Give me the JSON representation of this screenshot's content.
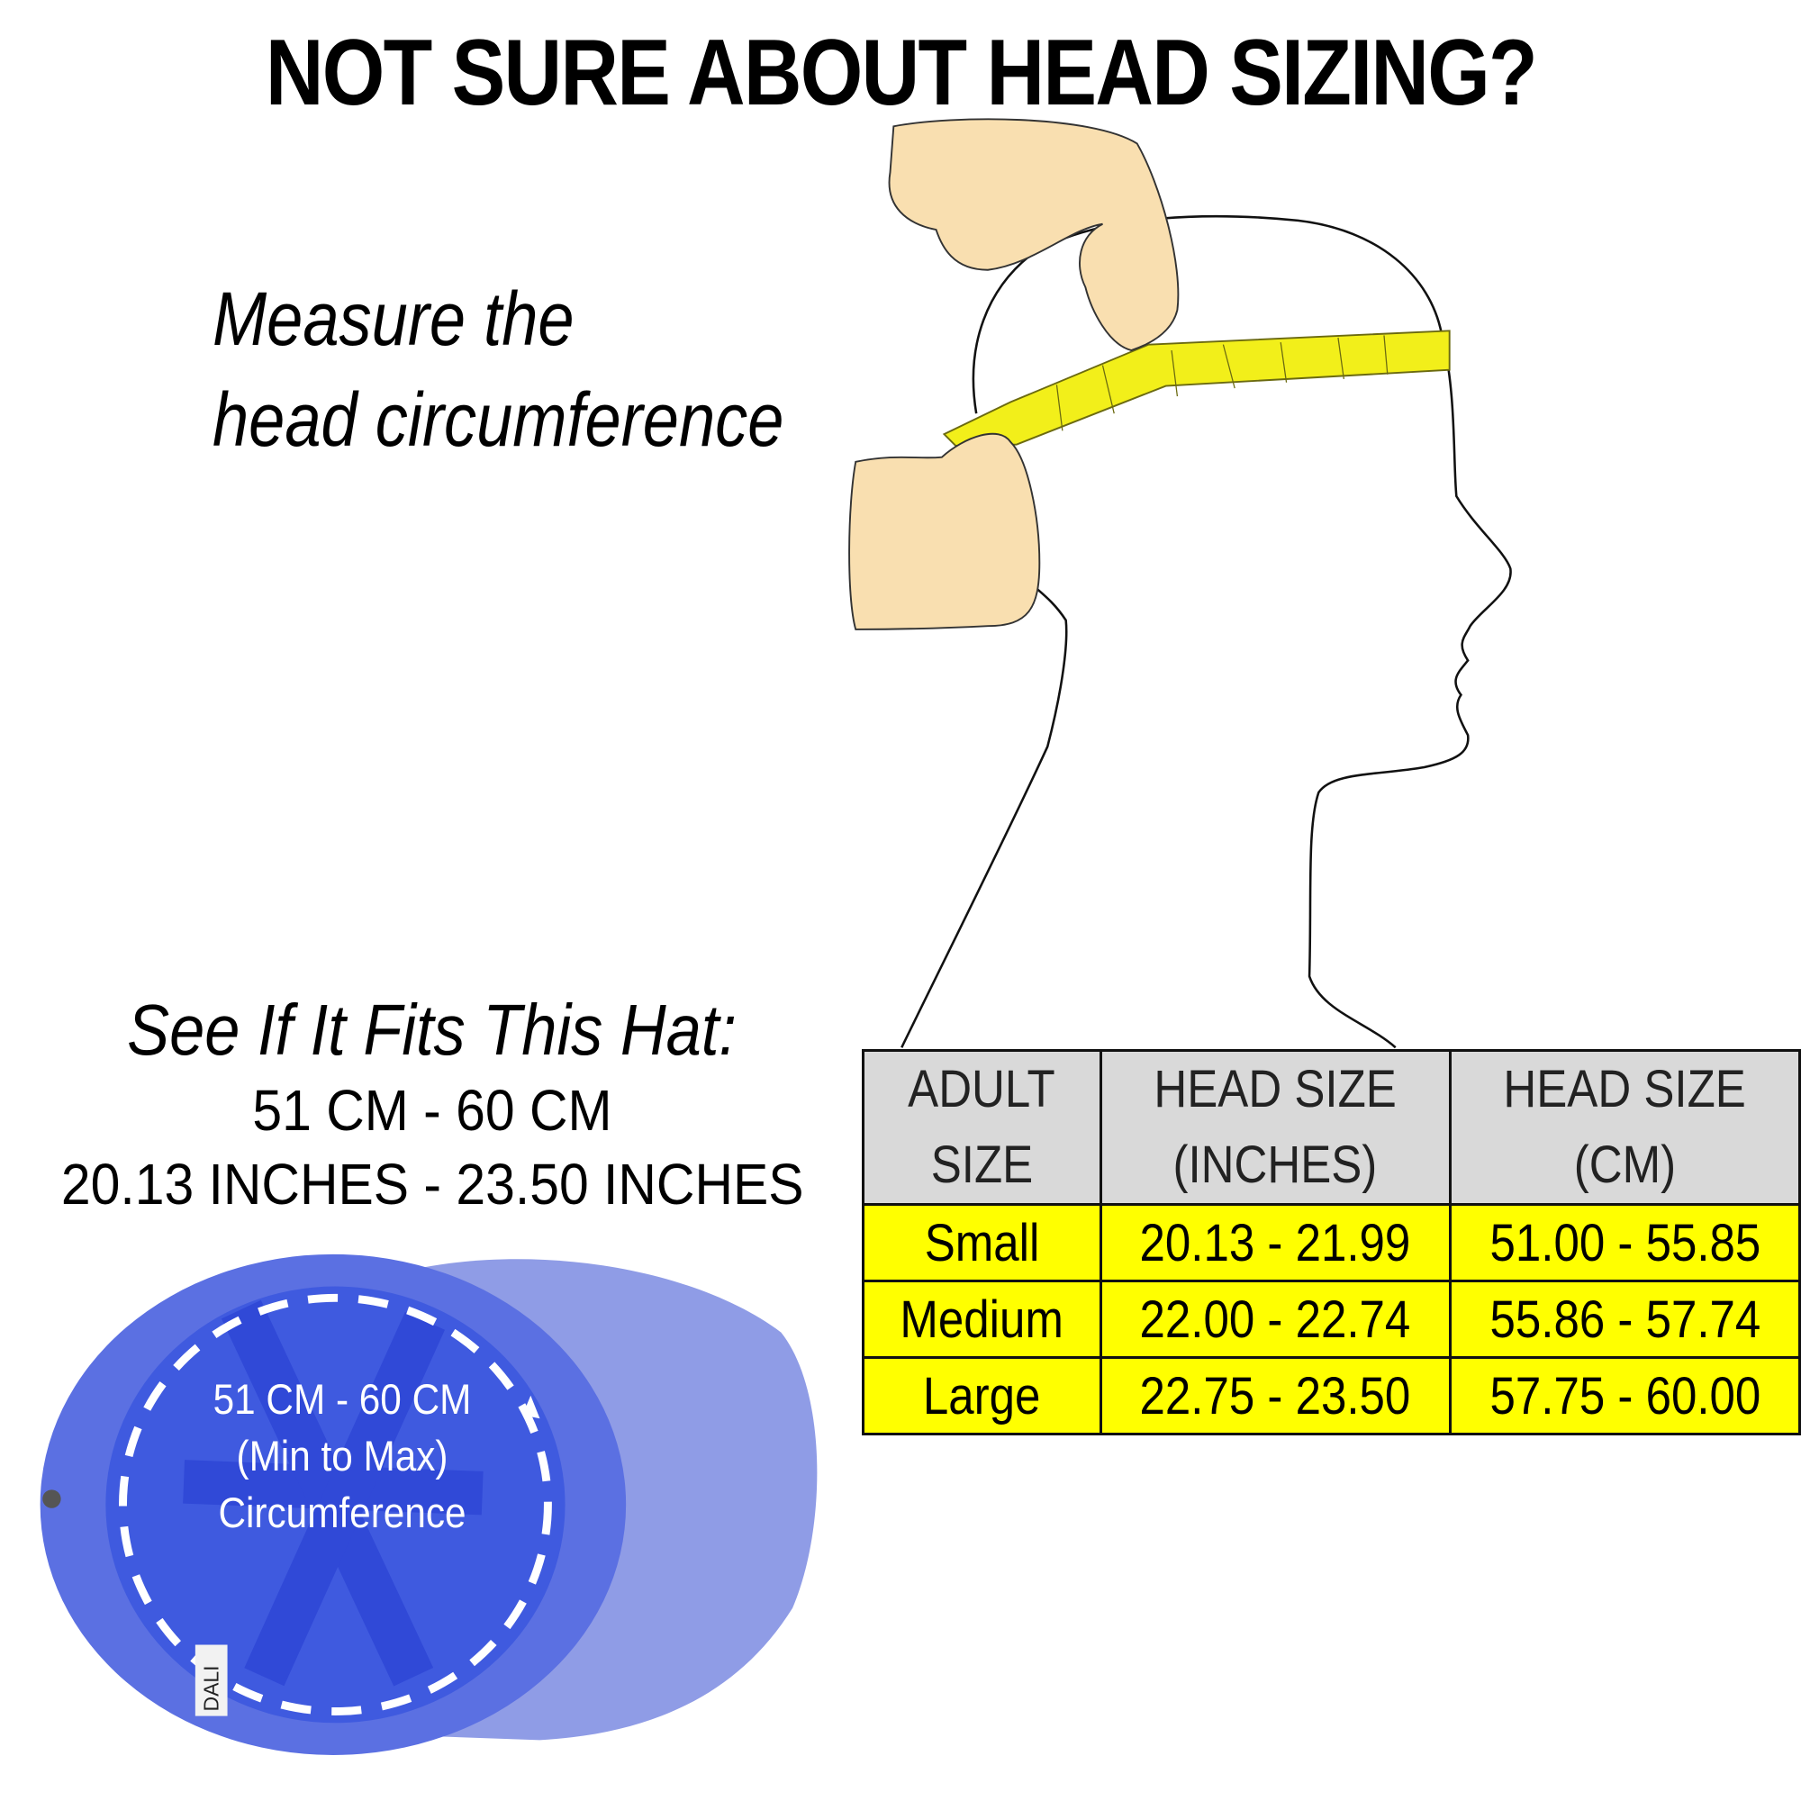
{
  "title": "NOT SURE ABOUT HEAD SIZING?",
  "instruction": {
    "line1": "Measure the",
    "line2": "head circumference"
  },
  "fit": {
    "heading": "See If It Fits This Hat:",
    "cm_range": "51 CM - 60 CM",
    "inch_range": "20.13 INCHES -  23.50 INCHES"
  },
  "hat_label": {
    "line1": "51 CM - 60 CM",
    "line2": "(Min to Max)",
    "line3": "Circumference",
    "brand": "DALI"
  },
  "size_table": {
    "headers": [
      {
        "line1": "ADULT",
        "line2": "SIZE"
      },
      {
        "line1": "HEAD SIZE",
        "line2": "(INCHES)"
      },
      {
        "line1": "HEAD SIZE",
        "line2": "(CM)"
      }
    ],
    "rows": [
      [
        "Small",
        "20.13 - 21.99",
        "51.00 - 55.85"
      ],
      [
        "Medium",
        "22.00 - 22.74",
        "55.86 - 57.74"
      ],
      [
        "Large",
        "22.75 - 23.50",
        "57.75 - 60.00"
      ]
    ]
  },
  "colors": {
    "row_highlight": "#ffff00",
    "header_bg": "#d9d9d9",
    "tape": "#f2ef1a",
    "hand": "#f9dfb0",
    "hat": "#5b6fe0"
  }
}
